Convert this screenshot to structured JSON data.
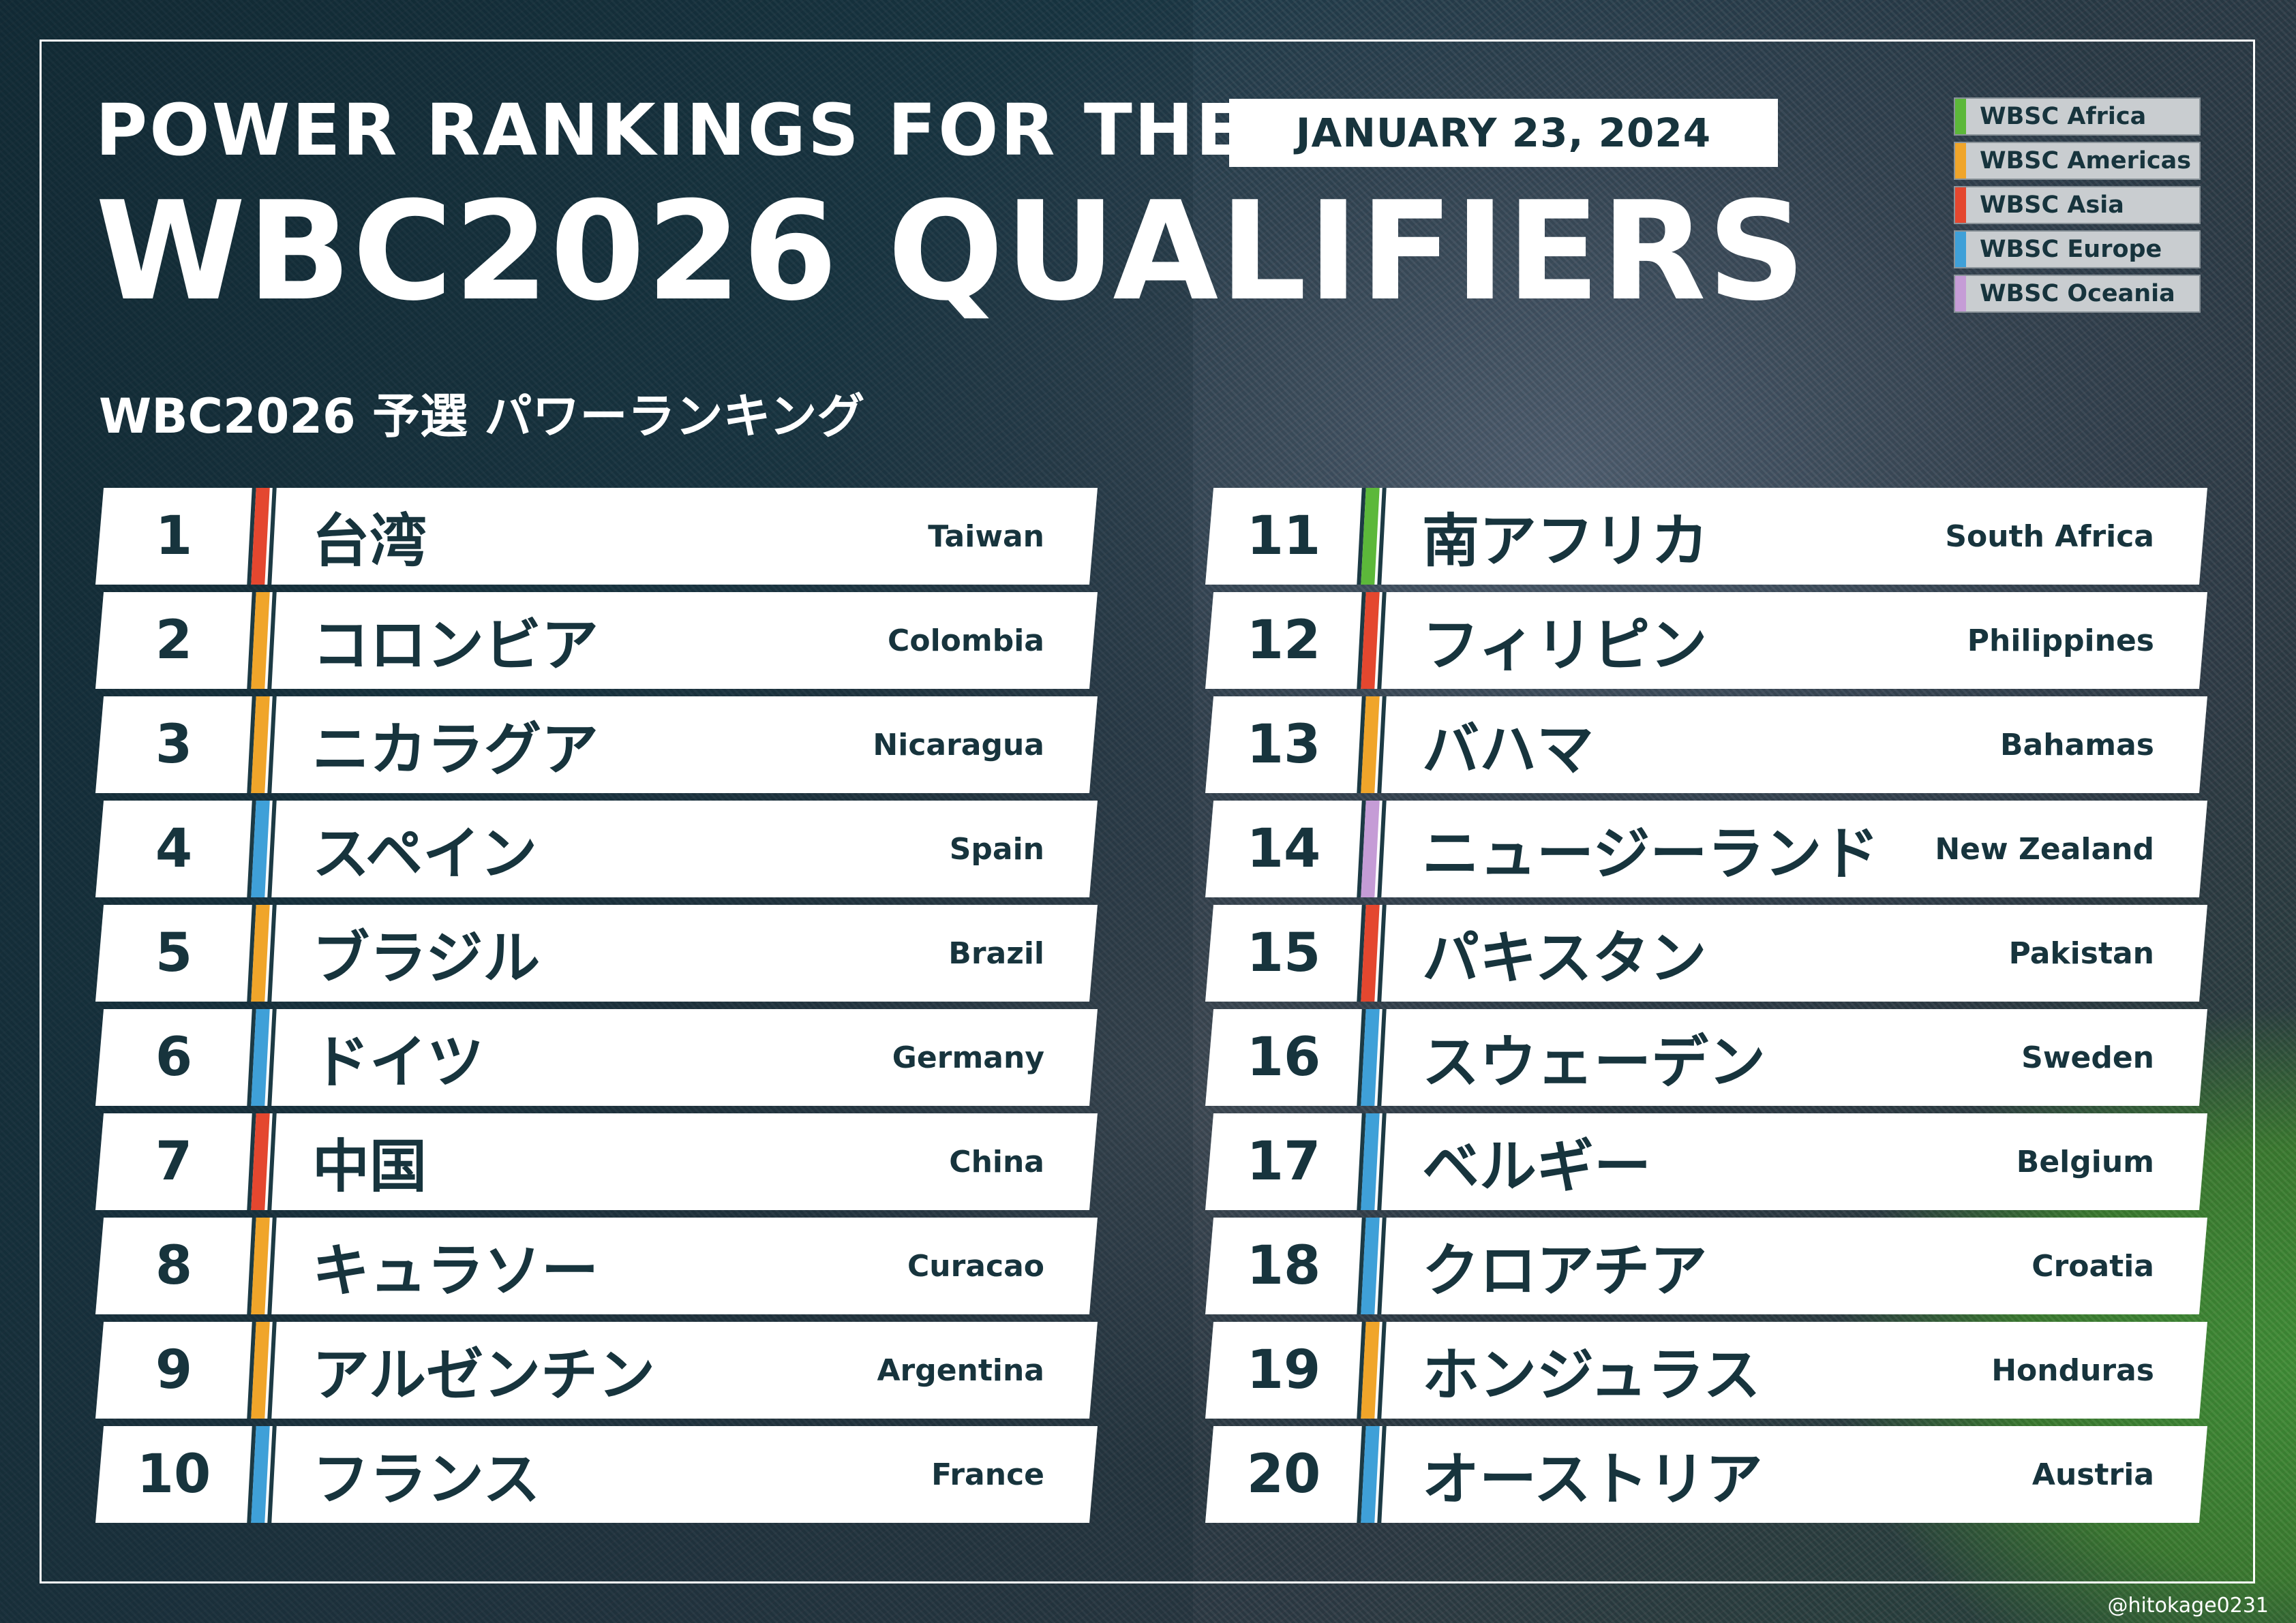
{
  "header": {
    "line1": "POWER RANKINGS FOR THE",
    "line2": "WBC2026 QUALIFIERS",
    "subtitle": "WBC2026 予選 パワーランキング",
    "date": "JANUARY 23, 2024"
  },
  "legend": [
    {
      "label": "WBSC Africa",
      "color": "#5cb83a"
    },
    {
      "label": "WBSC Americas",
      "color": "#f0a52a"
    },
    {
      "label": "WBSC Asia",
      "color": "#e4472f"
    },
    {
      "label": "WBSC Europe",
      "color": "#3fa0d8"
    },
    {
      "label": "WBSC Oceania",
      "color": "#c59cd6"
    }
  ],
  "rankings": [
    {
      "rank": "1",
      "jp": "台湾",
      "en": "Taiwan",
      "color": "#e4472f"
    },
    {
      "rank": "2",
      "jp": "コロンビア",
      "en": "Colombia",
      "color": "#f0a52a"
    },
    {
      "rank": "3",
      "jp": "ニカラグア",
      "en": "Nicaragua",
      "color": "#f0a52a"
    },
    {
      "rank": "4",
      "jp": "スペイン",
      "en": "Spain",
      "color": "#3fa0d8"
    },
    {
      "rank": "5",
      "jp": "ブラジル",
      "en": "Brazil",
      "color": "#f0a52a"
    },
    {
      "rank": "6",
      "jp": "ドイツ",
      "en": "Germany",
      "color": "#3fa0d8"
    },
    {
      "rank": "7",
      "jp": "中国",
      "en": "China",
      "color": "#e4472f"
    },
    {
      "rank": "8",
      "jp": "キュラソー",
      "en": "Curacao",
      "color": "#f0a52a"
    },
    {
      "rank": "9",
      "jp": "アルゼンチン",
      "en": "Argentina",
      "color": "#f0a52a"
    },
    {
      "rank": "10",
      "jp": "フランス",
      "en": "France",
      "color": "#3fa0d8"
    },
    {
      "rank": "11",
      "jp": "南アフリカ",
      "en": "South Africa",
      "color": "#5cb83a"
    },
    {
      "rank": "12",
      "jp": "フィリピン",
      "en": "Philippines",
      "color": "#e4472f"
    },
    {
      "rank": "13",
      "jp": "バハマ",
      "en": "Bahamas",
      "color": "#f0a52a"
    },
    {
      "rank": "14",
      "jp": "ニュージーランド",
      "en": "New Zealand",
      "color": "#c59cd6"
    },
    {
      "rank": "15",
      "jp": "パキスタン",
      "en": "Pakistan",
      "color": "#e4472f"
    },
    {
      "rank": "16",
      "jp": "スウェーデン",
      "en": "Sweden",
      "color": "#3fa0d8"
    },
    {
      "rank": "17",
      "jp": "ベルギー",
      "en": "Belgium",
      "color": "#3fa0d8"
    },
    {
      "rank": "18",
      "jp": "クロアチア",
      "en": "Croatia",
      "color": "#3fa0d8"
    },
    {
      "rank": "19",
      "jp": "ホンジュラス",
      "en": "Honduras",
      "color": "#f0a52a"
    },
    {
      "rank": "20",
      "jp": "オーストリア",
      "en": "Austria",
      "color": "#3fa0d8"
    }
  ],
  "credit": "@hitokage0231"
}
